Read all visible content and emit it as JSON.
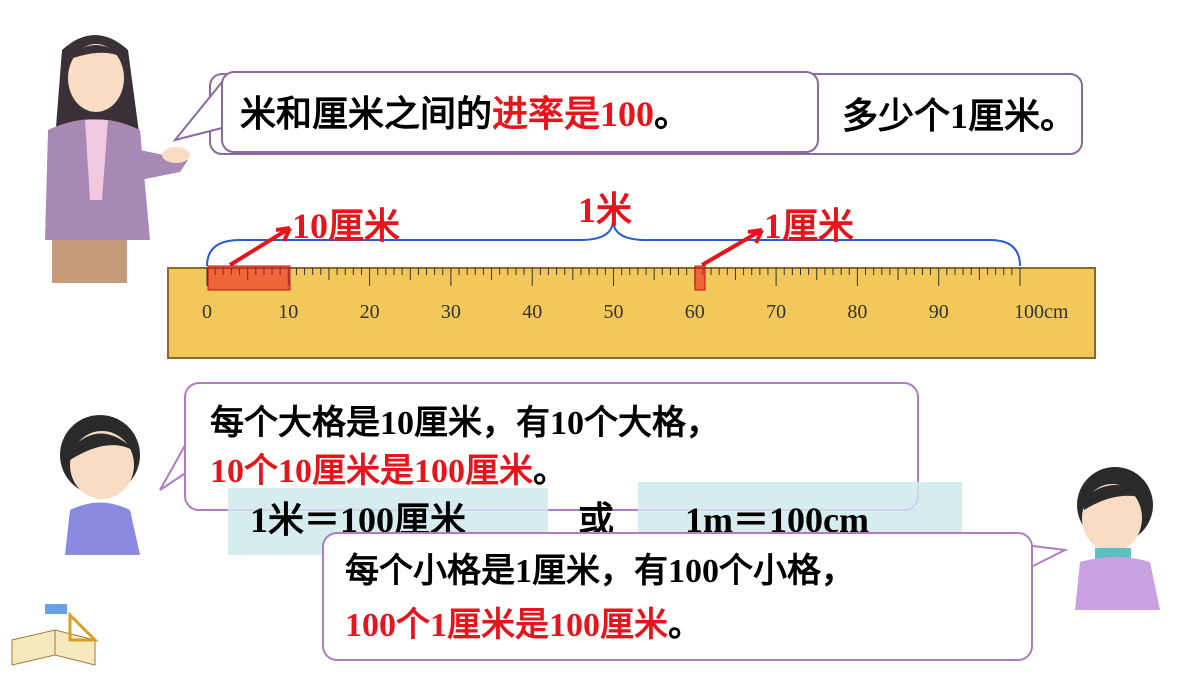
{
  "teacher": {
    "back": "多少个1厘米。",
    "front": [
      {
        "text": "米和厘米之间的",
        "color": "#000000"
      },
      {
        "text": "进率是100",
        "color": "#e8141b"
      },
      {
        "text": "。",
        "color": "#000000"
      }
    ]
  },
  "ruler": {
    "labels": [
      "0",
      "10",
      "20",
      "30",
      "40",
      "50",
      "60",
      "70",
      "80",
      "90",
      "100cm"
    ],
    "callouts": {
      "ten": "10厘米",
      "meter": "1米",
      "one": "1厘米"
    }
  },
  "girl": {
    "line1": "每个大格是10厘米，有10个大格，",
    "line2": [
      {
        "text": "10个10厘米是100厘米",
        "color": "#e8141b"
      },
      {
        "text": "。",
        "color": "#000000"
      }
    ]
  },
  "equation": {
    "left": "1米＝100厘米",
    "or": "或",
    "right": "1m＝100cm"
  },
  "boy": {
    "line1": "每个小格是1厘米，有100个小格，",
    "line2": [
      {
        "text": "100个1厘米是100厘米",
        "color": "#e8141b"
      },
      {
        "text": "。",
        "color": "#000000"
      }
    ]
  }
}
